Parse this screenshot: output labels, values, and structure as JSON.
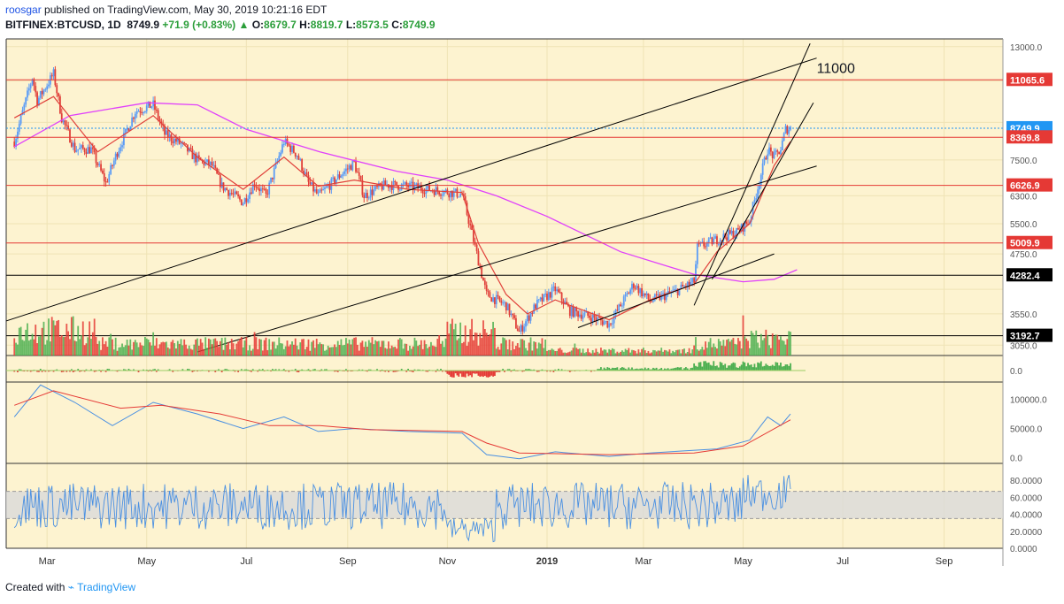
{
  "header": {
    "author": "roosgar",
    "published_text": "published on TradingView.com, May 30, 2019 10:21:16 EDT",
    "symbol": "BITFINEX:BTCUSD, 1D",
    "last": "8749.9",
    "change": "+71.9 (+0.83%)",
    "o_label": "O:",
    "o_value": "8679.7",
    "h_label": "H:",
    "h_value": "8819.7",
    "l_label": "L:",
    "l_value": "8573.5",
    "c_label": "C:",
    "c_value": "8749.9"
  },
  "footer": {
    "created_with": "Created with",
    "brand": "TradingView"
  },
  "colors": {
    "background": "#fdf3d0",
    "up_candle": "#5b9cf6",
    "down_candle": "#e0403a",
    "ema_line": "#e0403a",
    "sma200": "#e040fb",
    "level_red": "#e53935",
    "level_black": "#000000",
    "volume_up": "#4caf50",
    "volume_down": "#e53935",
    "indicator_blue": "#4a90e2",
    "indicator_red": "#e53935",
    "rsi_band": "#d9d9d9"
  },
  "chart_data": [
    {
      "type": "candlestick",
      "x_axis": {
        "labels": [
          "Mar",
          "May",
          "Jul",
          "Sep",
          "Nov",
          "2019",
          "Mar",
          "May",
          "Jul",
          "Sep"
        ],
        "bold_label": "2019"
      },
      "y_axis": {
        "scale": "log",
        "tick_labels": [
          "13000.0",
          "11065.6",
          "8749.9",
          "8369.8",
          "7500.0",
          "6626.9",
          "6300.0",
          "5500.0",
          "5009.9",
          "4750.0",
          "4282.4",
          "3550.0",
          "3192.7",
          "3050.0"
        ],
        "range": [
          2900,
          13500
        ]
      },
      "price_series": [
        [
          "2018-02-09",
          8200
        ],
        [
          "2018-02-20",
          11200
        ],
        [
          "2018-02-23",
          10000
        ],
        [
          "2018-03-05",
          11400
        ],
        [
          "2018-03-10",
          9200
        ],
        [
          "2018-03-18",
          7900
        ],
        [
          "2018-03-28",
          7900
        ],
        [
          "2018-04-06",
          6700
        ],
        [
          "2018-04-13",
          7800
        ],
        [
          "2018-04-24",
          9500
        ],
        [
          "2018-05-05",
          9800
        ],
        [
          "2018-05-12",
          8500
        ],
        [
          "2018-05-22",
          8100
        ],
        [
          "2018-06-01",
          7500
        ],
        [
          "2018-06-10",
          7300
        ],
        [
          "2018-06-16",
          6600
        ],
        [
          "2018-06-29",
          6100
        ],
        [
          "2018-07-06",
          6700
        ],
        [
          "2018-07-13",
          6300
        ],
        [
          "2018-07-24",
          8200
        ],
        [
          "2018-08-01",
          7700
        ],
        [
          "2018-08-08",
          6700
        ],
        [
          "2018-08-14",
          6300
        ],
        [
          "2018-08-28",
          7000
        ],
        [
          "2018-09-05",
          7400
        ],
        [
          "2018-09-11",
          6300
        ],
        [
          "2018-09-24",
          6650
        ],
        [
          "2018-10-08",
          6600
        ],
        [
          "2018-10-24",
          6480
        ],
        [
          "2018-11-10",
          6350
        ],
        [
          "2018-11-14",
          5600
        ],
        [
          "2018-11-20",
          4600
        ],
        [
          "2018-11-25",
          3900
        ],
        [
          "2018-12-07",
          3700
        ],
        [
          "2018-12-15",
          3250
        ],
        [
          "2018-12-25",
          3700
        ],
        [
          "2019-01-06",
          4000
        ],
        [
          "2019-01-15",
          3600
        ],
        [
          "2019-01-28",
          3500
        ],
        [
          "2019-02-08",
          3380
        ],
        [
          "2019-02-23",
          4100
        ],
        [
          "2019-03-05",
          3780
        ],
        [
          "2019-03-20",
          3950
        ],
        [
          "2019-04-01",
          4150
        ],
        [
          "2019-04-03",
          4900
        ],
        [
          "2019-04-15",
          5100
        ],
        [
          "2019-04-28",
          5300
        ],
        [
          "2019-05-05",
          5600
        ],
        [
          "2019-05-12",
          7000
        ],
        [
          "2019-05-16",
          7900
        ],
        [
          "2019-05-20",
          7600
        ],
        [
          "2019-05-24",
          7900
        ],
        [
          "2019-05-27",
          8700
        ],
        [
          "2019-05-30",
          8749.9
        ]
      ],
      "ema_series": [
        [
          "2018-02-09",
          9200
        ],
        [
          "2018-03-05",
          10200
        ],
        [
          "2018-04-01",
          7800
        ],
        [
          "2018-05-05",
          9300
        ],
        [
          "2018-06-01",
          7600
        ],
        [
          "2018-06-29",
          6500
        ],
        [
          "2018-07-24",
          7600
        ],
        [
          "2018-08-14",
          6600
        ],
        [
          "2018-09-05",
          6800
        ],
        [
          "2018-10-08",
          6500
        ],
        [
          "2018-11-10",
          6400
        ],
        [
          "2018-11-20",
          5000
        ],
        [
          "2018-12-07",
          3900
        ],
        [
          "2018-12-20",
          3550
        ],
        [
          "2019-01-06",
          3800
        ],
        [
          "2019-02-08",
          3450
        ],
        [
          "2019-03-05",
          3800
        ],
        [
          "2019-04-01",
          4100
        ],
        [
          "2019-04-15",
          4800
        ],
        [
          "2019-05-05",
          5500
        ],
        [
          "2019-05-20",
          7300
        ],
        [
          "2019-05-30",
          8200
        ]
      ],
      "sma200_series": [
        [
          "2018-02-09",
          8000
        ],
        [
          "2018-03-15",
          9300
        ],
        [
          "2018-05-01",
          9900
        ],
        [
          "2018-06-01",
          9800
        ],
        [
          "2018-07-01",
          8700
        ],
        [
          "2018-08-15",
          7800
        ],
        [
          "2018-10-01",
          7100
        ],
        [
          "2018-11-01",
          6800
        ],
        [
          "2018-12-01",
          6300
        ],
        [
          "2019-01-01",
          5700
        ],
        [
          "2019-02-15",
          4800
        ],
        [
          "2019-04-01",
          4300
        ],
        [
          "2019-05-01",
          4150
        ],
        [
          "2019-05-20",
          4200
        ],
        [
          "2019-06-03",
          4400
        ]
      ],
      "horizontal_levels": [
        {
          "price": 11065.6,
          "label": "11065.6",
          "color": "#e53935"
        },
        {
          "price": 8749.9,
          "label": "8749.9",
          "color": "#2196f3",
          "dotted": true
        },
        {
          "price": 8369.8,
          "label": "8369.8",
          "color": "#e53935"
        },
        {
          "price": 6626.9,
          "label": "6626.9",
          "color": "#e53935"
        },
        {
          "price": 5009.9,
          "label": "5009.9",
          "color": "#e53935"
        },
        {
          "price": 4282.4,
          "label": "4282.4",
          "color": "#000000"
        },
        {
          "price": 3192.7,
          "label": "3192.7",
          "color": "#000000"
        }
      ],
      "trendlines": [
        {
          "from": [
            "2018-02-04",
            3430
          ],
          "to": [
            "2019-06-15",
            12300
          ]
        },
        {
          "from": [
            "2018-06-01",
            2950
          ],
          "to": [
            "2019-06-15",
            7280
          ]
        },
        {
          "from": [
            "2019-01-20",
            3320
          ],
          "to": [
            "2019-05-20",
            4750
          ]
        },
        {
          "from": [
            "2019-04-01",
            3700
          ],
          "to": [
            "2019-06-11",
            13200
          ]
        },
        {
          "from": [
            "2019-04-12",
            4200
          ],
          "to": [
            "2019-06-13",
            9900
          ]
        }
      ],
      "annotation": {
        "text": "11000",
        "date": "2019-06-15",
        "price": 11450
      }
    },
    {
      "type": "bar",
      "name": "volume",
      "shape": "spiky, larger in early 2018 and Nov 2018, lighter in early 2019, rising in May 2019"
    },
    {
      "type": "histogram",
      "axis_label": "0.0",
      "baseline": 0
    },
    {
      "type": "line",
      "y_tick_labels": [
        "100000.0",
        "50000.0",
        "0.0"
      ],
      "ylim": [
        -10000,
        130000
      ],
      "series": [
        {
          "color": "#4a90e2",
          "points": [
            [
              "2018-02-09",
              70000
            ],
            [
              "2018-02-25",
              125000
            ],
            [
              "2018-03-18",
              95000
            ],
            [
              "2018-04-10",
              55000
            ],
            [
              "2018-05-05",
              95000
            ],
            [
              "2018-06-01",
              75000
            ],
            [
              "2018-06-29",
              50000
            ],
            [
              "2018-07-24",
              70000
            ],
            [
              "2018-08-14",
              45000
            ],
            [
              "2018-09-05",
              50000
            ],
            [
              "2018-10-08",
              45000
            ],
            [
              "2018-11-10",
              42000
            ],
            [
              "2018-11-25",
              5000
            ],
            [
              "2018-12-15",
              -2000
            ],
            [
              "2019-01-06",
              10000
            ],
            [
              "2019-02-08",
              2000
            ],
            [
              "2019-03-05",
              8000
            ],
            [
              "2019-04-15",
              15000
            ],
            [
              "2019-05-05",
              30000
            ],
            [
              "2019-05-16",
              70000
            ],
            [
              "2019-05-24",
              55000
            ],
            [
              "2019-05-30",
              75000
            ]
          ]
        },
        {
          "color": "#e53935",
          "points": [
            [
              "2018-02-09",
              90000
            ],
            [
              "2018-03-05",
              115000
            ],
            [
              "2018-04-15",
              85000
            ],
            [
              "2018-05-10",
              90000
            ],
            [
              "2018-06-15",
              75000
            ],
            [
              "2018-07-15",
              55000
            ],
            [
              "2018-08-15",
              55000
            ],
            [
              "2018-09-15",
              48000
            ],
            [
              "2018-11-10",
              45000
            ],
            [
              "2018-11-25",
              25000
            ],
            [
              "2018-12-15",
              8000
            ],
            [
              "2019-02-08",
              5000
            ],
            [
              "2019-04-01",
              8000
            ],
            [
              "2019-05-01",
              20000
            ],
            [
              "2019-05-30",
              65000
            ]
          ]
        }
      ]
    },
    {
      "type": "line",
      "name": "RSI",
      "y_tick_labels": [
        "80.0000",
        "60.0000",
        "40.0000",
        "20.0000",
        "0.0000"
      ],
      "ylim": [
        0,
        100
      ],
      "band": [
        35,
        67
      ],
      "series": [
        {
          "color": "#4a90e2",
          "shape": "oscillating between ~15 and ~90, lows near 5 in Nov 2018, highs near 90 in May 2019"
        }
      ]
    }
  ]
}
